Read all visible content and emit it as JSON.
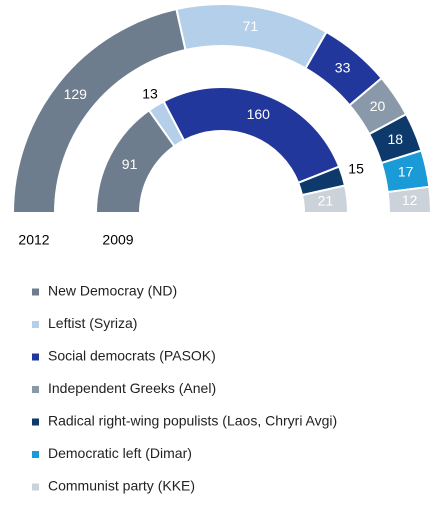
{
  "chart_data": {
    "type": "semi-donut",
    "categories": [
      "New Democray (ND)",
      "Leftist (Syriza)",
      "Social democrats (PASOK)",
      "Independent Greeks (Anel)",
      "Radical right-wing populists (Laos, Chryri Avgi)",
      "Democratic left (Dimar)",
      "Communist party (KKE)"
    ],
    "colors": [
      "#6d7d8e",
      "#b4cfea",
      "#22379c",
      "#8a99a9",
      "#0d3a6b",
      "#1a9ad6",
      "#cbd2da"
    ],
    "series": [
      {
        "name": "2012",
        "values": [
          129,
          71,
          33,
          20,
          18,
          17,
          12
        ]
      },
      {
        "name": "2009",
        "values": [
          91,
          13,
          160,
          null,
          15,
          null,
          21
        ]
      }
    ],
    "legend": "bottom-left"
  }
}
